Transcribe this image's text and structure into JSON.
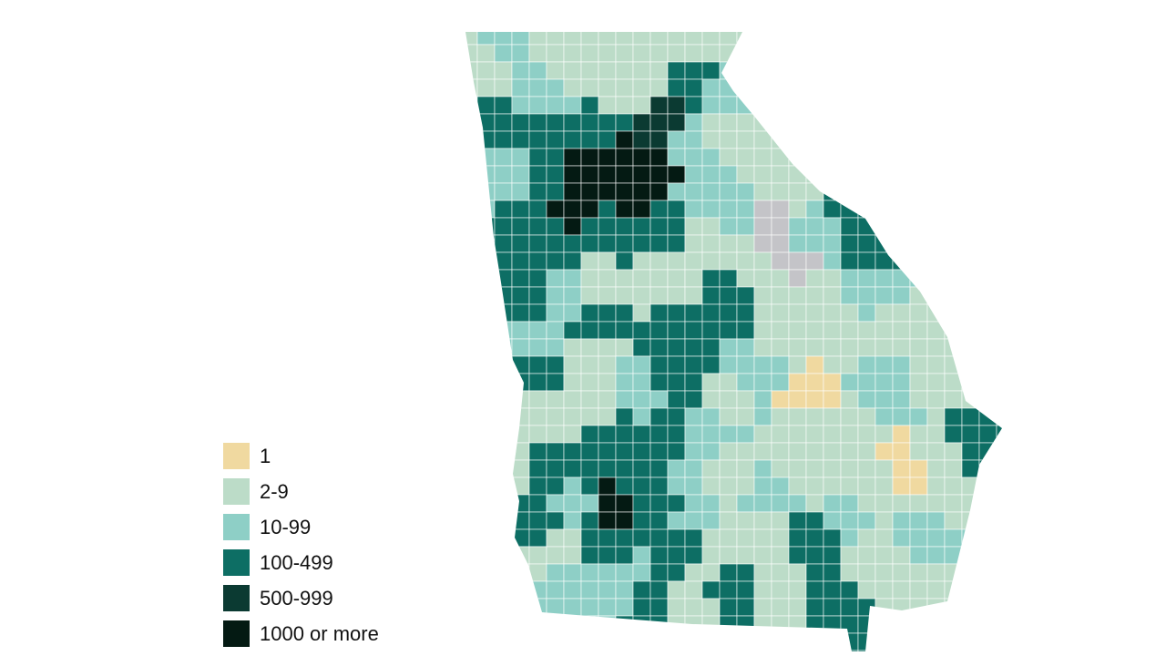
{
  "legend": {
    "items": [
      {
        "label": "1",
        "color": "#f0d9a0"
      },
      {
        "label": "2-9",
        "color": "#bcdcc8"
      },
      {
        "label": "10-99",
        "color": "#8ecfc6"
      },
      {
        "label": "100-499",
        "color": "#0d6e64"
      },
      {
        "label": "500-999",
        "color": "#0b3a32"
      },
      {
        "label": "1000 or more",
        "color": "#041a13"
      }
    ]
  },
  "no_data_color": "#c4c4c8",
  "border_color": "#ffffff"
}
